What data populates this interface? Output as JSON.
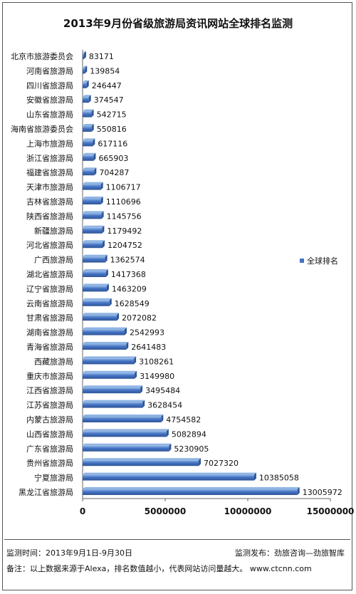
{
  "chart_data": {
    "type": "bar",
    "orientation": "horizontal",
    "title": "2013年9月份省级旅游局资讯网站全球排名监测",
    "categories": [
      "北京市旅游委员会",
      "河南省旅游局",
      "四川省旅游局",
      "安徽省旅游局",
      "山东省旅游局",
      "海南省旅游委员会",
      "上海市旅游局",
      "浙江省旅游局",
      "福建省旅游局",
      "天津市旅游局",
      "吉林省旅游局",
      "陕西省旅游局",
      "新疆旅游局",
      "河北省旅游局",
      "广西旅游局",
      "湖北省旅游局",
      "辽宁省旅游局",
      "云南省旅游局",
      "甘肃省旅游局",
      "湖南省旅游局",
      "青海省旅游局",
      "西藏旅游局",
      "重庆市旅游局",
      "江西省旅游局",
      "江苏省旅游局",
      "内蒙古旅游局",
      "山西省旅游局",
      "广东省旅游局",
      "贵州省旅游局",
      "宁夏旅游局",
      "黑龙江省旅游局"
    ],
    "series": [
      {
        "name": "全球排名",
        "values": [
          83171,
          139854,
          246447,
          374547,
          542715,
          550816,
          617116,
          665903,
          704287,
          1106717,
          1110696,
          1145756,
          1179492,
          1204752,
          1362574,
          1417368,
          1463209,
          1628549,
          2072082,
          2542993,
          2641483,
          3108261,
          3149980,
          3495484,
          3628454,
          4754582,
          5082894,
          5230905,
          7027320,
          10385058,
          13005972
        ]
      }
    ],
    "xlim": [
      0,
      15000000
    ],
    "xticks": [
      0,
      5000000,
      10000000,
      15000000
    ],
    "grid": false,
    "legend": "right",
    "colors": {
      "bar": "#4472c4",
      "bar_dark": "#2f5597",
      "bar_light": "#8eb4e3"
    }
  },
  "footer": {
    "period": "监测时间：2013年9月1日-9月30日",
    "publisher": "监测发布：劲旅咨询—劲旅智库",
    "note": "备注：以上数据来源于Alexa，排名数值越小，代表网站访问量越大。  www.ctcnn.com"
  }
}
